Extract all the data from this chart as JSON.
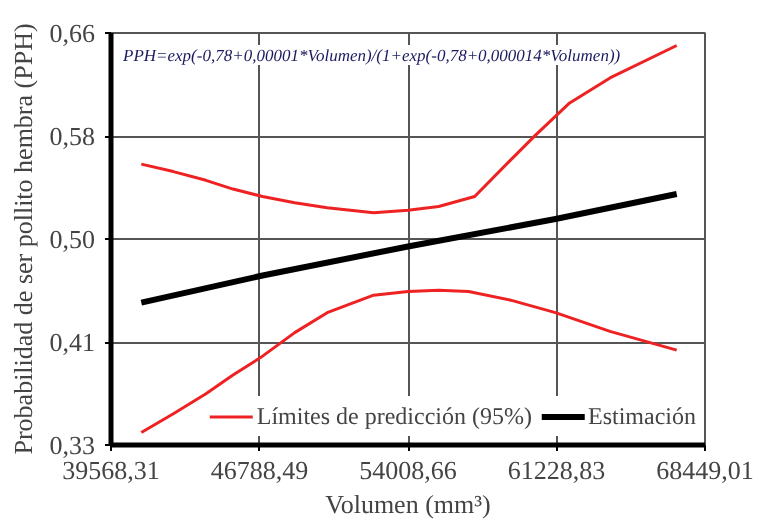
{
  "chart_data": {
    "type": "line",
    "xlabel": "Volumen (mm³)",
    "ylabel": "Probabilidad de ser pollito hembra (PPH)",
    "annotations": [
      "PPH=exp(-0,78+0,00001*Volumen)/(1+exp(-0,78+0,000014*Volumen))"
    ],
    "xlim": [
      39568.31,
      68449.01
    ],
    "ylim": [
      0.33,
      0.66
    ],
    "xticks": [
      {
        "value": 39568.31,
        "label": "39568,31"
      },
      {
        "value": 46788.49,
        "label": "46788,49"
      },
      {
        "value": 54008.66,
        "label": "54008,66"
      },
      {
        "value": 61228.83,
        "label": "61228,83"
      },
      {
        "value": 68449.01,
        "label": "68449,01"
      }
    ],
    "yticks": [
      {
        "value": 0.33,
        "label": "0,33"
      },
      {
        "value": 0.4125,
        "label": "0,41"
      },
      {
        "value": 0.495,
        "label": "0,50"
      },
      {
        "value": 0.5775,
        "label": "0,58"
      },
      {
        "value": 0.66,
        "label": "0,66"
      }
    ],
    "grid": true,
    "legend": "bottom right",
    "marker": "none",
    "line_style": "solid",
    "series": [
      {
        "name": "Límites de predicción (95%)",
        "color": "#ee2222",
        "x": [
          41042,
          42600,
          44185,
          45500,
          46837,
          48500,
          50079,
          52338,
          54008,
          55500,
          56955,
          59000,
          61179,
          63831,
          67073
        ],
        "values": [
          0.34,
          0.355,
          0.371,
          0.386,
          0.4,
          0.42,
          0.436,
          0.45,
          0.453,
          0.454,
          0.453,
          0.446,
          0.436,
          0.421,
          0.406
        ]
      },
      {
        "color": "#ee2222",
        "x": [
          41042,
          42600,
          44185,
          45500,
          46936,
          48500,
          50079,
          52338,
          54008,
          55500,
          57250,
          58920,
          60197,
          61868,
          63831,
          67073
        ],
        "values": [
          0.555,
          0.549,
          0.542,
          0.535,
          0.529,
          0.524,
          0.52,
          0.516,
          0.518,
          0.521,
          0.529,
          0.557,
          0.578,
          0.604,
          0.624,
          0.65
        ]
      },
      {
        "name": "Estimación",
        "color": "#000000",
        "x": [
          41042,
          47000,
          54008,
          61179,
          67073
        ],
        "values": [
          0.444,
          0.466,
          0.489,
          0.511,
          0.531
        ]
      }
    ]
  }
}
